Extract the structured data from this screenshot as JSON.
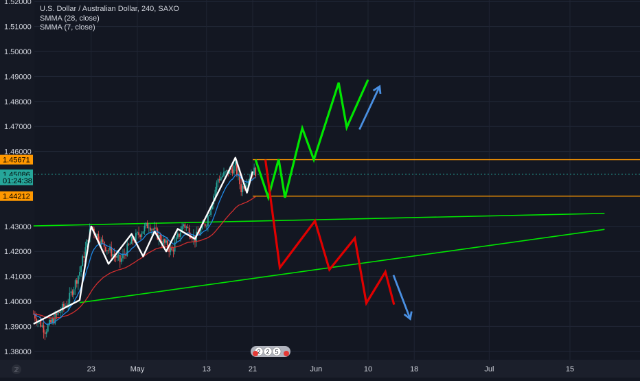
{
  "chart_data": {
    "type": "candlestick",
    "title": "U.S. Dollar / Australian Dollar, 240, SAXO",
    "indicators": [
      "SMMA (28, close)",
      "SMMA (7, close)"
    ],
    "y_axis": {
      "range": [
        1.376,
        1.525
      ],
      "tick_labels": [
        "1.52000",
        "1.51000",
        "1.50000",
        "1.49000",
        "1.48000",
        "1.47000",
        "1.46000",
        "1.43000",
        "1.42000",
        "1.41000",
        "1.40000",
        "1.39000",
        "1.38000"
      ]
    },
    "price_tags": [
      {
        "label": "1.45671",
        "value": 1.45671,
        "color": "#ff9800"
      },
      {
        "label": "1.45086",
        "value": 1.45086,
        "color": "#26a69a"
      },
      {
        "label": "01:24:38",
        "value": 1.4484,
        "color": "#26a69a"
      },
      {
        "label": "1.44212",
        "value": 1.44212,
        "color": "#ff9800"
      }
    ],
    "x_axis": {
      "tick_labels": [
        "23",
        "May",
        "13",
        "21",
        "Jun",
        "10",
        "18",
        "Jul",
        "15"
      ]
    },
    "horizontal_levels": [
      1.45671,
      1.44212
    ],
    "current_price": 1.45086,
    "trendlines": [
      {
        "name": "upper",
        "color": "#00e600",
        "from": [
          "Apr 18",
          1.4302
        ],
        "to": [
          "Jul 18",
          1.4352
        ]
      },
      {
        "name": "lower",
        "color": "#00e600",
        "from": [
          "Apr 23",
          1.3995
        ],
        "to": [
          "Jul 18",
          1.4288
        ]
      }
    ],
    "projections": [
      {
        "name": "bullish",
        "color": "#00e600",
        "points": [
          1.4567,
          1.4415,
          1.4569,
          1.4415,
          1.4693,
          1.4567,
          1.4875,
          1.4696,
          1.4887
        ]
      },
      {
        "name": "bearish",
        "color": "#e00000",
        "points": [
          1.4567,
          1.4135,
          1.4322,
          1.4127,
          1.4253,
          1.3993,
          1.4118,
          1.3987
        ]
      }
    ],
    "arrows": [
      {
        "direction": "up",
        "color": "#4a90e2"
      },
      {
        "direction": "down",
        "color": "#4a90e2"
      }
    ],
    "event_badges": [
      "2",
      "2",
      "5"
    ],
    "grid": true,
    "legend": "top-left"
  }
}
